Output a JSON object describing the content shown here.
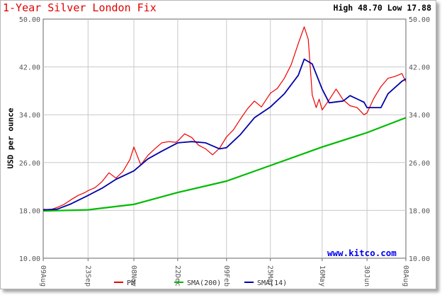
{
  "header": {
    "title": "1-Year Silver London Fix",
    "high_low": "High 48.70 Low 17.88"
  },
  "watermark": "www.kitco.com",
  "colors": {
    "pm": "#ee0000",
    "sma200": "#00bb00",
    "sma14": "#0000aa",
    "grid": "#c8c8c8",
    "title": "#e00000",
    "watermark": "#0000ee"
  },
  "chart_data": {
    "type": "line",
    "title": "1-Year Silver London Fix",
    "xlabel": "",
    "ylabel": "USD per ounce",
    "ylim": [
      10,
      50
    ],
    "yticks": [
      "10.00",
      "18.00",
      "26.00",
      "34.00",
      "42.00",
      "50.00"
    ],
    "ytick_values": [
      10,
      18,
      26,
      34,
      42,
      50
    ],
    "xticks": [
      "09Aug",
      "23Sep",
      "08Nov",
      "22Dec",
      "09Feb",
      "25Mar",
      "16May",
      "30Jun",
      "08Aug"
    ],
    "grid": true,
    "legend_position": "bottom-center",
    "series": [
      {
        "name": "PM",
        "color": "#ee0000",
        "points": [
          [
            "09Aug",
            18.2
          ],
          [
            "16Aug",
            18.1
          ],
          [
            "23Aug",
            18.5
          ],
          [
            "30Aug",
            19.0
          ],
          [
            "06Sep",
            19.8
          ],
          [
            "13Sep",
            20.5
          ],
          [
            "20Sep",
            21.0
          ],
          [
            "23Sep",
            21.3
          ],
          [
            "30Sep",
            21.8
          ],
          [
            "07Oct",
            22.8
          ],
          [
            "14Oct",
            24.3
          ],
          [
            "21Oct",
            23.4
          ],
          [
            "28Oct",
            24.5
          ],
          [
            "04Nov",
            26.5
          ],
          [
            "08Nov",
            28.6
          ],
          [
            "15Nov",
            25.6
          ],
          [
            "22Nov",
            27.2
          ],
          [
            "29Nov",
            28.3
          ],
          [
            "06Dec",
            29.3
          ],
          [
            "13Dec",
            29.5
          ],
          [
            "20Dec",
            29.4
          ],
          [
            "22Dec",
            29.6
          ],
          [
            "29Dec",
            30.8
          ],
          [
            "05Jan",
            30.2
          ],
          [
            "12Jan",
            28.9
          ],
          [
            "19Jan",
            28.3
          ],
          [
            "26Jan",
            27.3
          ],
          [
            "02Feb",
            28.4
          ],
          [
            "09Feb",
            30.3
          ],
          [
            "16Feb",
            31.5
          ],
          [
            "23Feb",
            33.3
          ],
          [
            "02Mar",
            35.0
          ],
          [
            "09Mar",
            36.3
          ],
          [
            "16Mar",
            35.3
          ],
          [
            "25Mar",
            37.6
          ],
          [
            "01Apr",
            38.4
          ],
          [
            "08Apr",
            40.1
          ],
          [
            "15Apr",
            42.4
          ],
          [
            "22Apr",
            45.9
          ],
          [
            "28Apr",
            48.7
          ],
          [
            "02May",
            46.6
          ],
          [
            "06May",
            37.3
          ],
          [
            "10May",
            35.2
          ],
          [
            "13May",
            36.6
          ],
          [
            "16May",
            34.8
          ],
          [
            "23May",
            36.5
          ],
          [
            "30May",
            38.3
          ],
          [
            "06Jun",
            36.5
          ],
          [
            "13Jun",
            35.5
          ],
          [
            "20Jun",
            35.2
          ],
          [
            "27Jun",
            34.0
          ],
          [
            "30Jun",
            34.3
          ],
          [
            "07Jul",
            36.8
          ],
          [
            "14Jul",
            38.7
          ],
          [
            "21Jul",
            40.1
          ],
          [
            "28Jul",
            40.4
          ],
          [
            "04Aug",
            40.9
          ],
          [
            "08Aug",
            39.5
          ]
        ]
      },
      {
        "name": "SMA(200)",
        "color": "#00bb00",
        "points": [
          [
            "09Aug",
            17.9
          ],
          [
            "23Sep",
            18.1
          ],
          [
            "08Nov",
            19.0
          ],
          [
            "22Dec",
            21.0
          ],
          [
            "09Feb",
            22.9
          ],
          [
            "25Mar",
            25.5
          ],
          [
            "16May",
            28.6
          ],
          [
            "30Jun",
            31.0
          ],
          [
            "08Aug",
            33.5
          ]
        ]
      },
      {
        "name": "SMA(14)",
        "color": "#0000aa",
        "points": [
          [
            "09Aug",
            18.1
          ],
          [
            "23Aug",
            18.2
          ],
          [
            "06Sep",
            19.1
          ],
          [
            "23Sep",
            20.5
          ],
          [
            "07Oct",
            21.7
          ],
          [
            "21Oct",
            23.2
          ],
          [
            "08Nov",
            24.6
          ],
          [
            "22Nov",
            26.6
          ],
          [
            "06Dec",
            27.9
          ],
          [
            "22Dec",
            29.3
          ],
          [
            "05Jan",
            29.5
          ],
          [
            "19Jan",
            29.3
          ],
          [
            "02Feb",
            28.3
          ],
          [
            "09Feb",
            28.5
          ],
          [
            "23Feb",
            30.7
          ],
          [
            "09Mar",
            33.5
          ],
          [
            "25Mar",
            35.3
          ],
          [
            "08Apr",
            37.5
          ],
          [
            "22Apr",
            40.6
          ],
          [
            "28Apr",
            43.3
          ],
          [
            "06May",
            42.5
          ],
          [
            "16May",
            38.3
          ],
          [
            "23May",
            36.0
          ],
          [
            "06Jun",
            36.3
          ],
          [
            "13Jun",
            37.2
          ],
          [
            "27Jun",
            36.1
          ],
          [
            "30Jun",
            35.2
          ],
          [
            "14Jul",
            35.2
          ],
          [
            "21Jul",
            37.5
          ],
          [
            "04Aug",
            39.6
          ],
          [
            "08Aug",
            40.0
          ]
        ]
      }
    ]
  }
}
